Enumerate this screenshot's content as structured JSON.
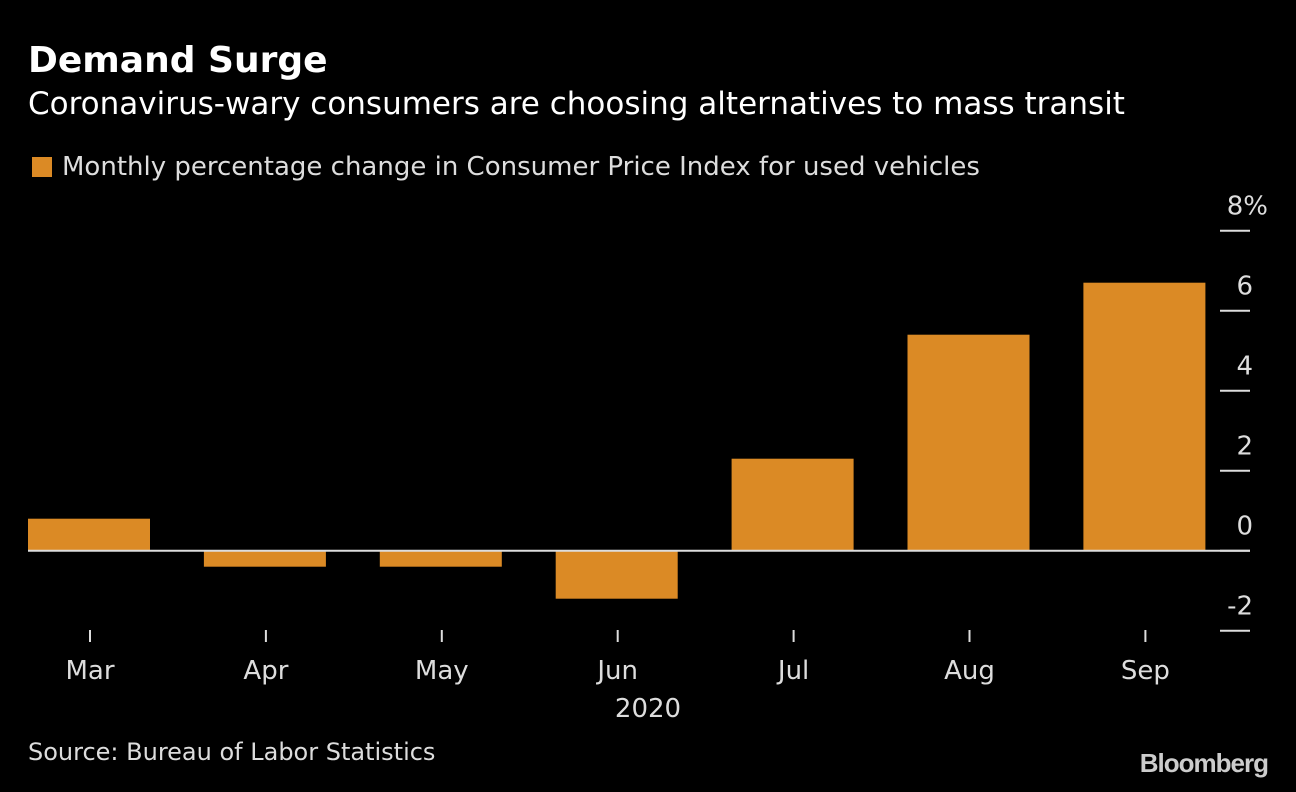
{
  "title": "Demand Surge",
  "subtitle": "Coronavirus-wary consumers are choosing alternatives to mass transit",
  "source": "Source: Bureau of Labor Statistics",
  "logo": "Bloomberg",
  "chart_data": {
    "type": "bar",
    "categories": [
      "Mar",
      "Apr",
      "May",
      "Jun",
      "Jul",
      "Aug",
      "Sep"
    ],
    "xlabel": "2020",
    "series": [
      {
        "name": "Monthly percentage change in Consumer Price Index for used vehicles",
        "values": [
          0.8,
          -0.4,
          -0.4,
          -1.2,
          2.3,
          5.4,
          6.7
        ],
        "color": "#db8a25"
      }
    ],
    "ylim": [
      -2,
      8
    ],
    "yticks": [
      -2,
      0,
      2,
      4,
      6,
      8
    ],
    "ytick_labels": [
      "-2",
      "0",
      "2",
      "4",
      "6",
      "8%"
    ],
    "yaxis_position": "right",
    "legend_position": "top-left",
    "grid": false
  }
}
